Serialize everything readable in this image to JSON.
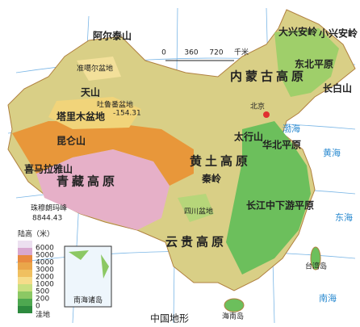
{
  "title": "中国地形",
  "scale": {
    "ticks": [
      0,
      360,
      720
    ],
    "unit": "千米"
  },
  "legend": {
    "title": "陆高（米）",
    "levels": [
      6000,
      5000,
      4000,
      3000,
      2000,
      1000,
      500,
      200,
      0,
      "洼地"
    ]
  },
  "inset": {
    "title": "南海诸岛"
  },
  "labels": [
    "青藏高原",
    "内蒙古高原",
    "黄土高原",
    "云贵高原",
    "四川盆地",
    "塔里木盆地",
    "准噶尔盆地",
    "东北平原",
    "华北平原",
    "长江中下游平原",
    "北京",
    "天山",
    "昆仑山",
    "阿尔泰山",
    "喜马拉雅山",
    "大兴安岭",
    "小兴安岭",
    "长白山",
    "秦岭",
    "太行山",
    "台湾岛",
    "海南岛",
    "珠穆朗玛峰",
    "8844.43",
    "吐鲁番盆地",
    "-154.31",
    "南海",
    "东海",
    "黄海",
    "渤海"
  ]
}
